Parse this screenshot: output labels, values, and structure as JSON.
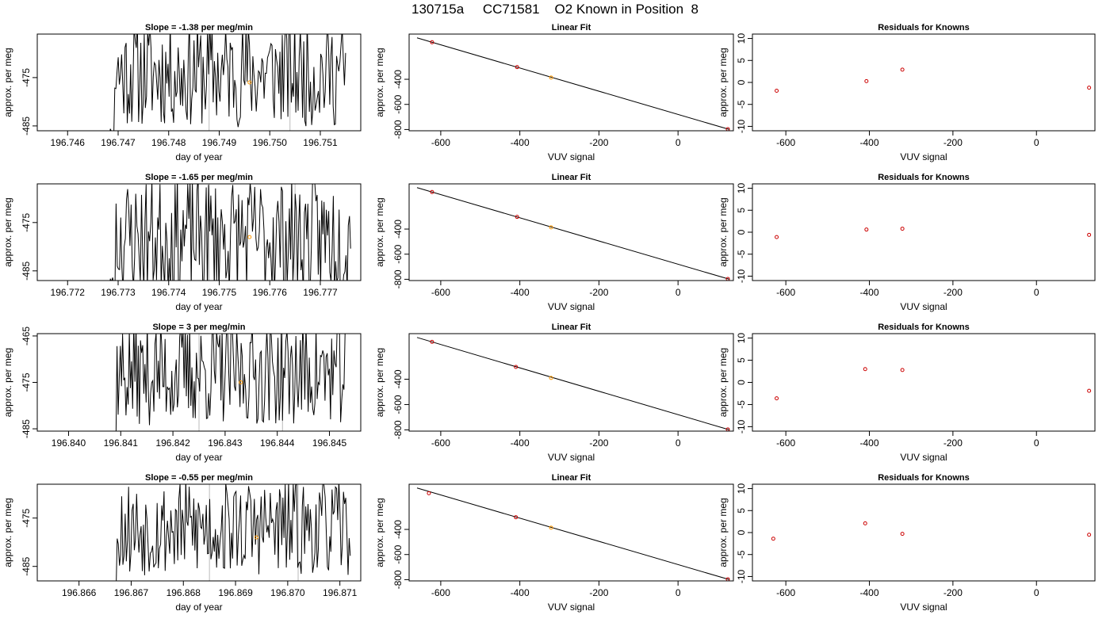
{
  "title": "130715a     CC71581    O2 Known in Position  8",
  "colors": {
    "line": "#000000",
    "known": "#cc0000",
    "highlight": "#ff9900",
    "window": "#bbbbbb"
  },
  "chart_data": [
    {
      "type": "line",
      "title": "Slope =  -1.38  per meg/min",
      "xlabel": "day of year",
      "ylabel": "approx. per meg",
      "xlim": [
        196.7454,
        196.7518
      ],
      "ylim": [
        -486,
        -466
      ],
      "xticks": [
        "196.746",
        "196.747",
        "196.748",
        "196.749",
        "196.750",
        "196.751"
      ],
      "yticks": [
        "-475",
        "-485"
      ],
      "ytick_values": [
        -475,
        -485
      ],
      "trace_start": 196.7468,
      "trace_end": 196.7515,
      "trace_center": -474,
      "trace_amplitude": 9,
      "trace_seed": 11,
      "window_lines": [
        196.7488,
        196.7504
      ],
      "highlight_point": {
        "x": 196.7496,
        "y": -476
      }
    },
    {
      "type": "scatter",
      "title": "Linear Fit",
      "xlabel": "VUV signal",
      "ylabel": "approx. per meg",
      "xlim": [
        -680,
        140
      ],
      "ylim": [
        -810,
        -40
      ],
      "xticks": [
        "-600",
        "-400",
        "-200",
        "0"
      ],
      "xtick_values": [
        -600,
        -400,
        -200,
        0
      ],
      "yticks": [
        "-400",
        "-600",
        "-800"
      ],
      "ytick_values": [
        -400,
        -600,
        -800
      ],
      "fit_line": {
        "x": [
          -660,
          130
        ],
        "y": [
          -70,
          -800
        ]
      },
      "x": [
        -622,
        -407,
        -321,
        126
      ],
      "y": [
        -105,
        -303,
        -386,
        -797
      ],
      "highlight_index": 2
    },
    {
      "type": "scatter",
      "title": "Residuals for Knowns",
      "xlabel": "VUV signal",
      "ylabel": "approx. per meg",
      "xlim": [
        -680,
        140
      ],
      "ylim": [
        -11,
        11
      ],
      "xticks": [
        "-600",
        "-400",
        "-200",
        "0"
      ],
      "xtick_values": [
        -600,
        -400,
        -200,
        0
      ],
      "yticks": [
        "-10",
        "-5",
        "0",
        "5",
        "10"
      ],
      "ytick_values": [
        -10,
        -5,
        0,
        5,
        10
      ],
      "x": [
        -622,
        -407,
        -321,
        126
      ],
      "y": [
        -1.9,
        0.3,
        2.9,
        -1.2
      ]
    },
    {
      "type": "line",
      "title": "Slope =  -1.65  per meg/min",
      "xlabel": "day of year",
      "ylabel": "approx. per meg",
      "xlim": [
        196.7714,
        196.7778
      ],
      "ylim": [
        -487,
        -467
      ],
      "xticks": [
        "196.772",
        "196.773",
        "196.774",
        "196.775",
        "196.776",
        "196.777"
      ],
      "yticks": [
        "-475",
        "-485"
      ],
      "ytick_values": [
        -475,
        -485
      ],
      "trace_start": 196.7728,
      "trace_end": 196.7776,
      "trace_center": -478,
      "trace_amplitude": 10,
      "trace_seed": 23,
      "window_lines": [
        196.7748,
        196.7765
      ],
      "highlight_point": {
        "x": 196.7756,
        "y": -478
      }
    },
    {
      "type": "scatter",
      "title": "Linear Fit",
      "xlabel": "VUV signal",
      "ylabel": "approx. per meg",
      "xlim": [
        -680,
        140
      ],
      "ylim": [
        -810,
        -40
      ],
      "xticks": [
        "-600",
        "-400",
        "-200",
        "0"
      ],
      "xtick_values": [
        -600,
        -400,
        -200,
        0
      ],
      "yticks": [
        "-400",
        "-600",
        "-800"
      ],
      "ytick_values": [
        -400,
        -600,
        -800
      ],
      "fit_line": {
        "x": [
          -660,
          130
        ],
        "y": [
          -70,
          -800
        ]
      },
      "x": [
        -622,
        -407,
        -321,
        126
      ],
      "y": [
        -105,
        -303,
        -386,
        -797
      ],
      "highlight_index": 2
    },
    {
      "type": "scatter",
      "title": "Residuals for Knowns",
      "xlabel": "VUV signal",
      "ylabel": "approx. per meg",
      "xlim": [
        -680,
        140
      ],
      "ylim": [
        -11,
        11
      ],
      "xticks": [
        "-600",
        "-400",
        "-200",
        "0"
      ],
      "xtick_values": [
        -600,
        -400,
        -200,
        0
      ],
      "yticks": [
        "-10",
        "-5",
        "0",
        "5",
        "10"
      ],
      "ytick_values": [
        -10,
        -5,
        0,
        5,
        10
      ],
      "x": [
        -622,
        -407,
        -321,
        126
      ],
      "y": [
        -1.1,
        0.6,
        0.8,
        -0.6
      ]
    },
    {
      "type": "line",
      "title": "Slope =  3  per meg/min",
      "xlabel": "day of year",
      "ylabel": "approx. per meg",
      "xlim": [
        196.8394,
        196.8456
      ],
      "ylim": [
        -485.5,
        -464.5
      ],
      "xticks": [
        "196.840",
        "196.841",
        "196.842",
        "196.843",
        "196.844",
        "196.845"
      ],
      "yticks": [
        "-465",
        "-475",
        "-485"
      ],
      "ytick_values": [
        -465,
        -475,
        -485
      ],
      "trace_start": 196.8408,
      "trace_end": 196.8453,
      "trace_center": -473,
      "trace_amplitude": 9,
      "trace_seed": 37,
      "window_lines": [
        196.8425,
        196.8441
      ],
      "highlight_point": {
        "x": 196.8433,
        "y": -475
      }
    },
    {
      "type": "scatter",
      "title": "Linear Fit",
      "xlabel": "VUV signal",
      "ylabel": "approx. per meg",
      "xlim": [
        -680,
        140
      ],
      "ylim": [
        -810,
        -40
      ],
      "xticks": [
        "-600",
        "-400",
        "-200",
        "0"
      ],
      "xtick_values": [
        -600,
        -400,
        -200,
        0
      ],
      "yticks": [
        "-400",
        "-600",
        "-800"
      ],
      "ytick_values": [
        -400,
        -600,
        -800
      ],
      "fit_line": {
        "x": [
          -660,
          130
        ],
        "y": [
          -70,
          -800
        ]
      },
      "x": [
        -622,
        -410,
        -321,
        126
      ],
      "y": [
        -105,
        -303,
        -390,
        -797
      ],
      "highlight_index": 2
    },
    {
      "type": "scatter",
      "title": "Residuals for Knowns",
      "xlabel": "VUV signal",
      "ylabel": "approx. per meg",
      "xlim": [
        -680,
        140
      ],
      "ylim": [
        -11,
        11
      ],
      "xticks": [
        "-600",
        "-400",
        "-200",
        "0"
      ],
      "xtick_values": [
        -600,
        -400,
        -200,
        0
      ],
      "yticks": [
        "-10",
        "-5",
        "0",
        "5",
        "10"
      ],
      "ytick_values": [
        -10,
        -5,
        0,
        5,
        10
      ],
      "x": [
        -622,
        -410,
        -321,
        126
      ],
      "y": [
        -3.6,
        3.0,
        2.8,
        -1.9
      ]
    },
    {
      "type": "line",
      "title": "Slope =  -0.55  per meg/min",
      "xlabel": "day of year",
      "ylabel": "approx. per meg",
      "xlim": [
        196.8652,
        196.8714
      ],
      "ylim": [
        -488,
        -468
      ],
      "xticks": [
        "196.866",
        "196.867",
        "196.868",
        "196.869",
        "196.870",
        "196.871"
      ],
      "yticks": [
        "-475",
        "-485"
      ],
      "ytick_values": [
        -475,
        -485
      ],
      "trace_start": 196.8666,
      "trace_end": 196.8712,
      "trace_center": -477,
      "trace_amplitude": 8,
      "trace_seed": 53,
      "window_lines": [
        196.8685,
        196.8702
      ],
      "highlight_point": {
        "x": 196.8694,
        "y": -479
      }
    },
    {
      "type": "scatter",
      "title": "Linear Fit",
      "xlabel": "VUV signal",
      "ylabel": "approx. per meg",
      "xlim": [
        -680,
        140
      ],
      "ylim": [
        -810,
        -40
      ],
      "xticks": [
        "-600",
        "-400",
        "-200",
        "0"
      ],
      "xtick_values": [
        -600,
        -400,
        -200,
        0
      ],
      "yticks": [
        "-400",
        "-600",
        "-800"
      ],
      "ytick_values": [
        -400,
        -600,
        -800
      ],
      "fit_line": {
        "x": [
          -660,
          130
        ],
        "y": [
          -70,
          -800
        ]
      },
      "x": [
        -630,
        -410,
        -321,
        126
      ],
      "y": [
        -112,
        -303,
        -386,
        -797
      ],
      "highlight_index": 2
    },
    {
      "type": "scatter",
      "title": "Residuals for Knowns",
      "xlabel": "VUV signal",
      "ylabel": "approx. per meg",
      "xlim": [
        -680,
        140
      ],
      "ylim": [
        -11,
        11
      ],
      "xticks": [
        "-600",
        "-400",
        "-200",
        "0"
      ],
      "xtick_values": [
        -600,
        -400,
        -200,
        0
      ],
      "yticks": [
        "-10",
        "-5",
        "0",
        "5",
        "10"
      ],
      "ytick_values": [
        -10,
        -5,
        0,
        5,
        10
      ],
      "x": [
        -630,
        -410,
        -321,
        126
      ],
      "y": [
        -1.4,
        2.1,
        -0.3,
        -0.5
      ]
    }
  ]
}
